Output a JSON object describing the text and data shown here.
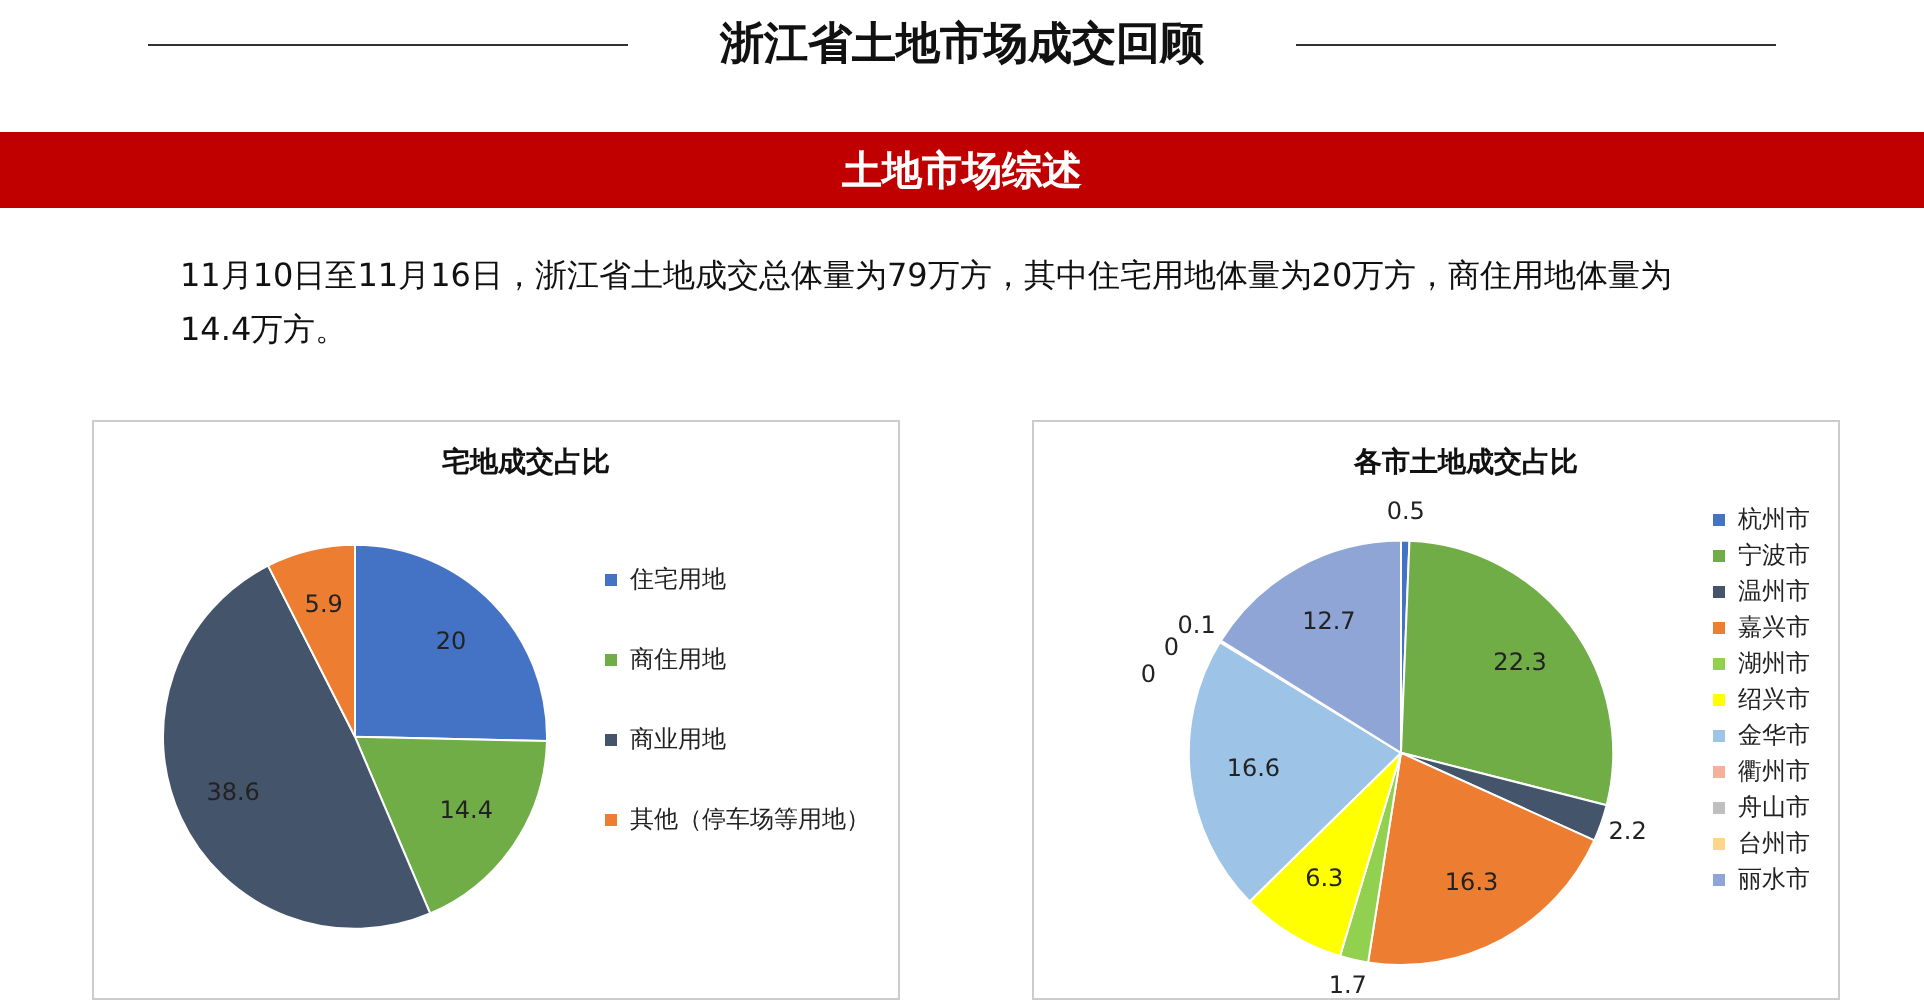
{
  "chart_data": [
    {
      "type": "other",
      "title": "浙江省土地市场成交回顾",
      "subtitle": "土地市场综述",
      "annotations": [
        "11月10日至11月16日，浙江省土地成交总体量为79万方，其中住宅用地体量为20万方，商住用地体量为14.4万方。"
      ]
    },
    {
      "type": "pie",
      "title": "宅地成交占比",
      "categories": [
        "住宅用地",
        "商住用地",
        "商业用地",
        "其他（停车场等用地）"
      ],
      "values": [
        20,
        14.4,
        38.6,
        5.9
      ],
      "colors": [
        "#4472c4",
        "#70ad47",
        "#44546a",
        "#ed7d31"
      ],
      "data_labels": true,
      "legend": "right"
    },
    {
      "type": "pie",
      "title": "各市土地成交占比",
      "categories": [
        "杭州市",
        "宁波市",
        "温州市",
        "嘉兴市",
        "湖州市",
        "绍兴市",
        "金华市",
        "衢州市",
        "舟山市",
        "台州市",
        "丽水市"
      ],
      "values": [
        0.5,
        22.3,
        2.2,
        16.3,
        1.7,
        6.3,
        16.6,
        0.1,
        0,
        0,
        12.7
      ],
      "value_labels": [
        "0.5",
        "22.3",
        "2.2",
        "16.3",
        "1.7",
        "6.3",
        "16.6",
        "0.1",
        "0",
        "0",
        "12.7"
      ],
      "colors": [
        "#4472c4",
        "#70ad47",
        "#44546a",
        "#ed7d31",
        "#92d050",
        "#ffff00",
        "#9dc3e6",
        "#f4b09a",
        "#bfbfbf",
        "#ffd58a",
        "#8fa5d6"
      ],
      "legend": "right"
    }
  ]
}
